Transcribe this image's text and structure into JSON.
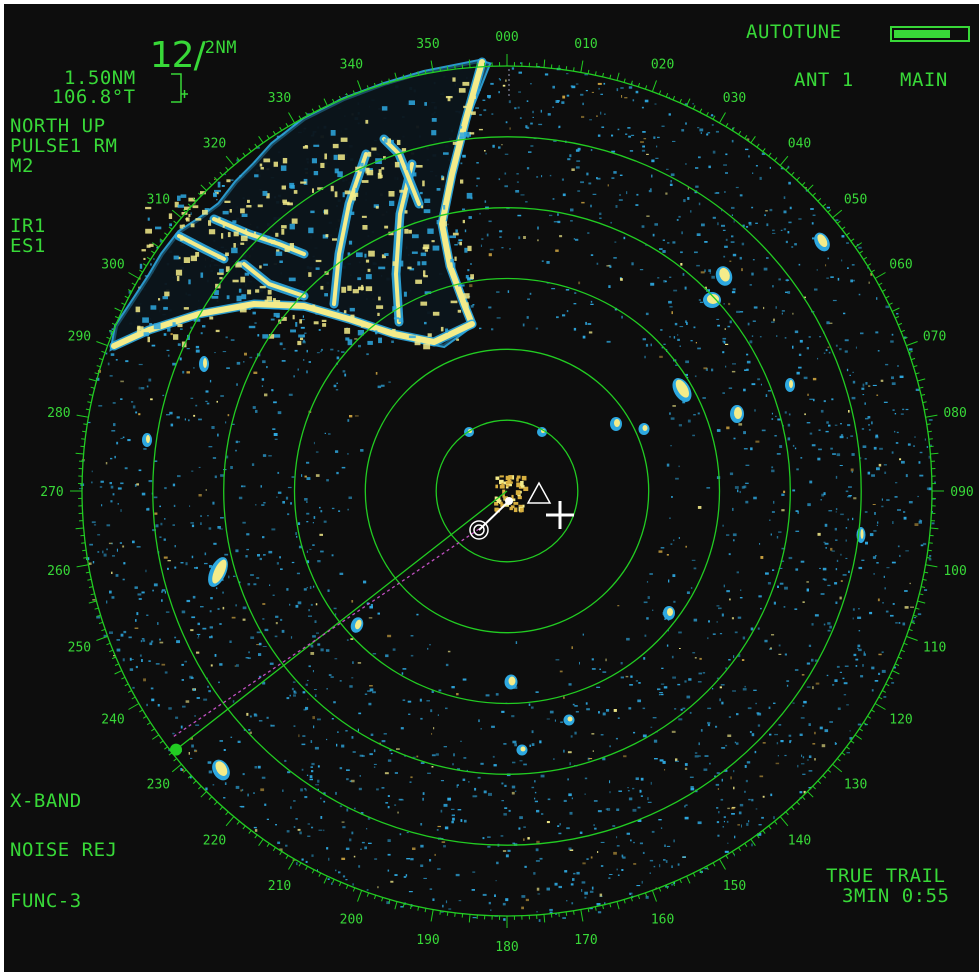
{
  "range": {
    "value": "12",
    "slash": "/",
    "ring_interval": "2NM"
  },
  "cursor_readout": {
    "range": "1.50NM",
    "bearing": "106.8°T"
  },
  "display_mode": {
    "orientation": "NORTH UP",
    "pulse_motion": "PULSE1 RM",
    "mode": "M2",
    "interference_rejection": "IR1",
    "echo_stretch": "ES1"
  },
  "autotune": {
    "label": "AUTOTUNE",
    "level": 0.78
  },
  "antenna": {
    "label": "ANT 1",
    "mode": "MAIN"
  },
  "band": {
    "label": "X-BAND"
  },
  "noise": {
    "label": "NOISE REJ"
  },
  "function_key": {
    "label": "FUNC-3"
  },
  "trail": {
    "mode": "TRUE TRAIL",
    "status": "3MIN 0:55"
  },
  "bearing_scale": {
    "labels": [
      "000",
      "010",
      "020",
      "030",
      "040",
      "050",
      "060",
      "070",
      "080",
      "090",
      "100",
      "110",
      "120",
      "130",
      "140",
      "150",
      "160",
      "170",
      "180",
      "190",
      "200",
      "210",
      "220",
      "230",
      "240",
      "250",
      "260",
      "270",
      "280",
      "290",
      "300",
      "310",
      "320",
      "330",
      "340",
      "350"
    ]
  },
  "ebl": {
    "bearing": 232
  },
  "rings": {
    "count": 6
  },
  "colors": {
    "text": "#38d838",
    "rings": "#22cc22",
    "echo_strong": "#f4ec8a",
    "echo_weak": "#2ea8e0",
    "background": "#0d0d0d",
    "ebl_dotted": "#c050c0"
  }
}
